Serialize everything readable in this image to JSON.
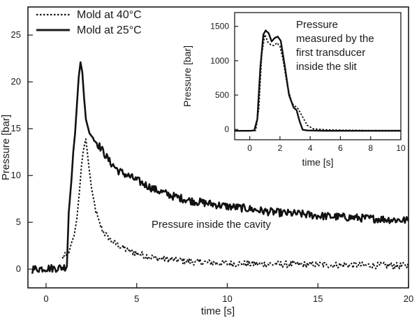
{
  "chart_data": [
    {
      "type": "line",
      "title": "",
      "xlabel": "time [s]",
      "ylabel": "Pressure [bar]",
      "xlim": [
        -1,
        20
      ],
      "ylim": [
        -2,
        28
      ],
      "xticks": [
        0,
        5,
        10,
        15,
        20
      ],
      "yticks": [
        0,
        5,
        10,
        15,
        20,
        25
      ],
      "grid": false,
      "legend": {
        "placement": "top-left",
        "entries": [
          "Mold at 40°C",
          "Mold at 25°C"
        ]
      },
      "annotations": [
        "Pressure inside the cavity"
      ],
      "series": [
        {
          "name": "Mold at 40°C",
          "style": "dotted",
          "points": [
            [
              0.9,
              1.2
            ],
            [
              1.1,
              1.5
            ],
            [
              1.25,
              1.7
            ],
            [
              1.4,
              2.8
            ],
            [
              1.55,
              3.6
            ],
            [
              1.7,
              5.4
            ],
            [
              1.85,
              8.5
            ],
            [
              1.95,
              11.0
            ],
            [
              2.05,
              12.6
            ],
            [
              2.15,
              13.6
            ],
            [
              2.2,
              13.9
            ],
            [
              2.25,
              13.0
            ],
            [
              2.35,
              11.2
            ],
            [
              2.5,
              8.8
            ],
            [
              2.7,
              6.6
            ],
            [
              2.9,
              5.1
            ],
            [
              3.2,
              3.9
            ],
            [
              3.6,
              3.0
            ],
            [
              4.0,
              2.5
            ],
            [
              4.5,
              2.0
            ],
            [
              5.0,
              1.7
            ],
            [
              6.0,
              1.2
            ],
            [
              7.0,
              1.0
            ],
            [
              8.0,
              0.8
            ],
            [
              10.0,
              0.6
            ],
            [
              12.0,
              0.55
            ],
            [
              14.0,
              0.5
            ],
            [
              16.0,
              0.45
            ],
            [
              18.0,
              0.4
            ],
            [
              20.0,
              0.35
            ]
          ]
        },
        {
          "name": "Mold at 25°C",
          "style": "solid",
          "points": [
            [
              -0.8,
              0.0
            ],
            [
              0.0,
              0.1
            ],
            [
              0.5,
              0.1
            ],
            [
              1.0,
              0.2
            ],
            [
              1.15,
              0.3
            ],
            [
              1.25,
              6.0
            ],
            [
              1.4,
              9.5
            ],
            [
              1.5,
              12.5
            ],
            [
              1.6,
              14.5
            ],
            [
              1.7,
              17.5
            ],
            [
              1.8,
              20.5
            ],
            [
              1.9,
              22.1
            ],
            [
              2.0,
              21.0
            ],
            [
              2.1,
              18.2
            ],
            [
              2.2,
              16.0
            ],
            [
              2.4,
              14.5
            ],
            [
              2.6,
              14.0
            ],
            [
              3.0,
              13.0
            ],
            [
              3.5,
              11.5
            ],
            [
              4.0,
              10.5
            ],
            [
              5.0,
              9.5
            ],
            [
              6.0,
              8.5
            ],
            [
              7.0,
              7.8
            ],
            [
              8.0,
              7.3
            ],
            [
              9.0,
              7.0
            ],
            [
              10.0,
              6.7
            ],
            [
              11.0,
              6.5
            ],
            [
              12.0,
              6.2
            ],
            [
              13.0,
              6.0
            ],
            [
              14.0,
              5.9
            ],
            [
              15.0,
              5.7
            ],
            [
              16.0,
              5.6
            ],
            [
              17.0,
              5.5
            ],
            [
              18.0,
              5.4
            ],
            [
              19.0,
              5.3
            ],
            [
              20.0,
              5.2
            ]
          ]
        }
      ]
    },
    {
      "type": "line",
      "title": "",
      "xlabel": "time [s]",
      "ylabel": "Pressure [bar]",
      "xlim": [
        -1,
        10
      ],
      "ylim": [
        -150,
        1700
      ],
      "xticks": [
        0,
        2,
        4,
        6,
        8,
        10
      ],
      "yticks": [
        0,
        500,
        1000,
        1500
      ],
      "grid": false,
      "annotations": [
        "Pressure",
        "measured by the",
        "first transducer",
        "inside the slit"
      ],
      "series": [
        {
          "style": "dotted",
          "points": [
            [
              -1.0,
              -20
            ],
            [
              0.0,
              -20
            ],
            [
              0.4,
              -15
            ],
            [
              0.6,
              300
            ],
            [
              0.8,
              1100
            ],
            [
              1.0,
              1380
            ],
            [
              1.2,
              1270
            ],
            [
              1.4,
              1230
            ],
            [
              1.6,
              1220
            ],
            [
              1.8,
              1260
            ],
            [
              2.0,
              1210
            ],
            [
              2.2,
              1020
            ],
            [
              2.5,
              620
            ],
            [
              2.8,
              380
            ],
            [
              3.2,
              300
            ],
            [
              3.5,
              180
            ],
            [
              3.8,
              60
            ],
            [
              4.2,
              10
            ],
            [
              5.0,
              -5
            ],
            [
              6.0,
              -10
            ],
            [
              8.0,
              -15
            ],
            [
              10.0,
              -15
            ]
          ]
        },
        {
          "style": "solid",
          "points": [
            [
              -1.0,
              -20
            ],
            [
              0.0,
              -20
            ],
            [
              0.3,
              -15
            ],
            [
              0.5,
              150
            ],
            [
              0.7,
              900
            ],
            [
              0.9,
              1380
            ],
            [
              1.05,
              1440
            ],
            [
              1.25,
              1400
            ],
            [
              1.45,
              1280
            ],
            [
              1.65,
              1330
            ],
            [
              1.85,
              1350
            ],
            [
              2.05,
              1290
            ],
            [
              2.3,
              950
            ],
            [
              2.6,
              500
            ],
            [
              2.9,
              320
            ],
            [
              3.1,
              280
            ],
            [
              3.3,
              120
            ],
            [
              3.5,
              -5
            ],
            [
              3.8,
              -15
            ],
            [
              5.0,
              -20
            ],
            [
              7.0,
              -20
            ],
            [
              10.0,
              -20
            ]
          ]
        }
      ]
    }
  ]
}
